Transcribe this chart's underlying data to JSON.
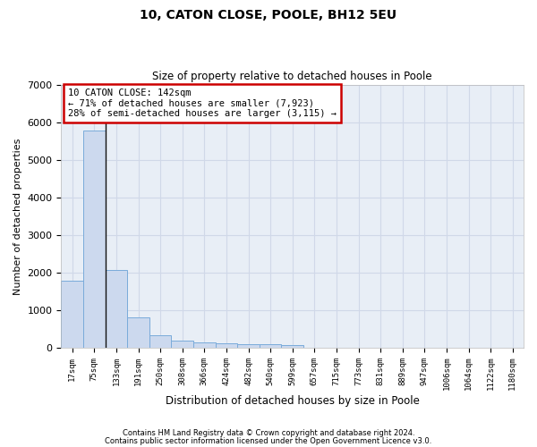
{
  "title": "10, CATON CLOSE, POOLE, BH12 5EU",
  "subtitle": "Size of property relative to detached houses in Poole",
  "xlabel": "Distribution of detached houses by size in Poole",
  "ylabel": "Number of detached properties",
  "bar_color": "#ccd9ee",
  "bar_edge_color": "#7aabda",
  "vline_color": "#111111",
  "vline_x": 2,
  "annotation_text": "10 CATON CLOSE: 142sqm\n← 71% of detached houses are smaller (7,923)\n28% of semi-detached houses are larger (3,115) →",
  "annotation_box_color": "#ffffff",
  "annotation_box_edge": "#cc0000",
  "categories": [
    "17sqm",
    "75sqm",
    "133sqm",
    "191sqm",
    "250sqm",
    "308sqm",
    "366sqm",
    "424sqm",
    "482sqm",
    "540sqm",
    "599sqm",
    "657sqm",
    "715sqm",
    "773sqm",
    "831sqm",
    "889sqm",
    "947sqm",
    "1006sqm",
    "1064sqm",
    "1122sqm",
    "1180sqm"
  ],
  "values": [
    1780,
    5780,
    2060,
    800,
    340,
    185,
    145,
    115,
    105,
    100,
    80,
    0,
    0,
    0,
    0,
    0,
    0,
    0,
    0,
    0,
    0
  ],
  "ylim": [
    0,
    7000
  ],
  "yticks": [
    0,
    1000,
    2000,
    3000,
    4000,
    5000,
    6000,
    7000
  ],
  "grid_color": "#d0d8e8",
  "background_color": "#e8eef6",
  "footer1": "Contains HM Land Registry data © Crown copyright and database right 2024.",
  "footer2": "Contains public sector information licensed under the Open Government Licence v3.0."
}
